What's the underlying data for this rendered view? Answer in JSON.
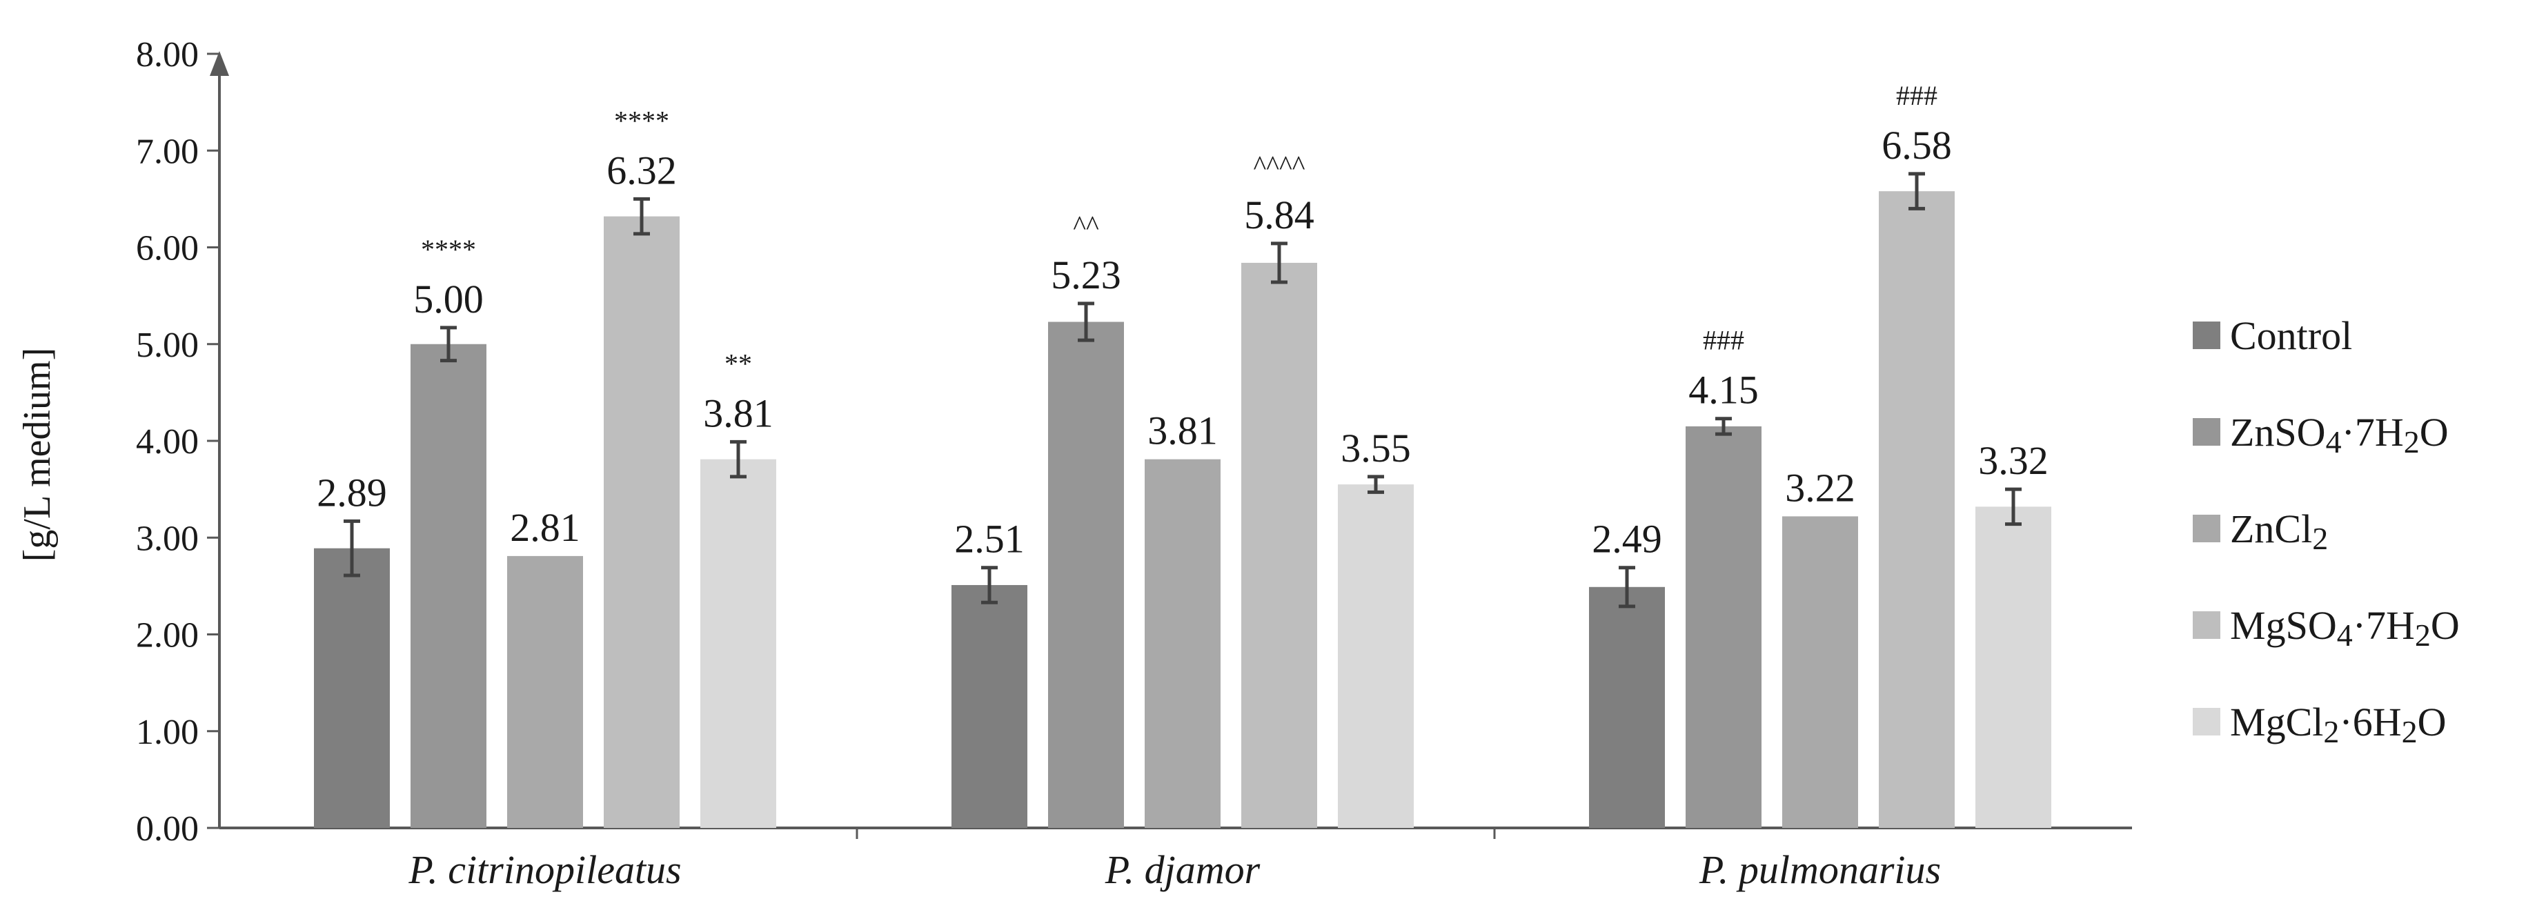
{
  "chart_data": {
    "type": "bar",
    "title": "",
    "xlabel": "",
    "ylabel": "[g/L medium]",
    "ylim": [
      0,
      8
    ],
    "y_ticks": [
      "0.00",
      "1.00",
      "2.00",
      "3.00",
      "4.00",
      "5.00",
      "6.00",
      "7.00",
      "8.00"
    ],
    "categories": [
      "P. citrinopileatus",
      "P. djamor",
      "P. pulmonarius"
    ],
    "grid": false,
    "legend_position": "right",
    "series": [
      {
        "name": "Control",
        "color": "#7f7f7f",
        "values": [
          2.89,
          2.51,
          2.49
        ],
        "errors": [
          0.28,
          0.18,
          0.2
        ],
        "labels": [
          "2.89",
          "2.51",
          "2.49"
        ],
        "sig": [
          "",
          "",
          ""
        ]
      },
      {
        "name": "ZnSO4·7H2O",
        "color": "#969696",
        "values": [
          5.0,
          5.23,
          4.15
        ],
        "errors": [
          0.17,
          0.19,
          0.08
        ],
        "labels": [
          "5.00",
          "5.23",
          "4.15"
        ],
        "sig": [
          "****",
          "^^",
          "###"
        ]
      },
      {
        "name": "ZnCl2",
        "color": "#a9a9a9",
        "values": [
          2.81,
          3.81,
          3.22
        ],
        "errors": [
          0,
          0,
          0
        ],
        "labels": [
          "2.81",
          "3.81",
          "3.22"
        ],
        "sig": [
          "",
          "",
          ""
        ]
      },
      {
        "name": "MgSO4·7H2O",
        "color": "#bebebe",
        "values": [
          6.32,
          5.84,
          6.58
        ],
        "errors": [
          0.18,
          0.2,
          0.18
        ],
        "labels": [
          "6.32",
          "5.84",
          "6.58"
        ],
        "sig": [
          "****",
          "^^^^",
          "###"
        ]
      },
      {
        "name": "MgCl2·6H2O",
        "color": "#d9d9d9",
        "values": [
          3.81,
          3.55,
          3.32
        ],
        "errors": [
          0.18,
          0.08,
          0.18
        ],
        "labels": [
          "3.81",
          "3.55",
          "3.32"
        ],
        "sig": [
          "**",
          "",
          ""
        ]
      }
    ],
    "legend": [
      {
        "base": "Control",
        "parts": [
          [
            "Control",
            false
          ]
        ]
      },
      {
        "base": "ZnSO4·7H2O",
        "parts": [
          [
            "ZnSO",
            false
          ],
          [
            "4",
            true
          ],
          [
            "·7H",
            false
          ],
          [
            "2",
            true
          ],
          [
            "O",
            false
          ]
        ]
      },
      {
        "base": "ZnCl2",
        "parts": [
          [
            "ZnCl",
            false
          ],
          [
            "2",
            true
          ]
        ]
      },
      {
        "base": "MgSO4·7H2O",
        "parts": [
          [
            "MgSO",
            false
          ],
          [
            "4",
            true
          ],
          [
            "·7H",
            false
          ],
          [
            "2",
            true
          ],
          [
            "O",
            false
          ]
        ]
      },
      {
        "base": "MgCl2·6H2O",
        "parts": [
          [
            "MgCl",
            false
          ],
          [
            "2",
            true
          ],
          [
            "·6H",
            false
          ],
          [
            "2",
            true
          ],
          [
            "O",
            false
          ]
        ]
      }
    ]
  }
}
